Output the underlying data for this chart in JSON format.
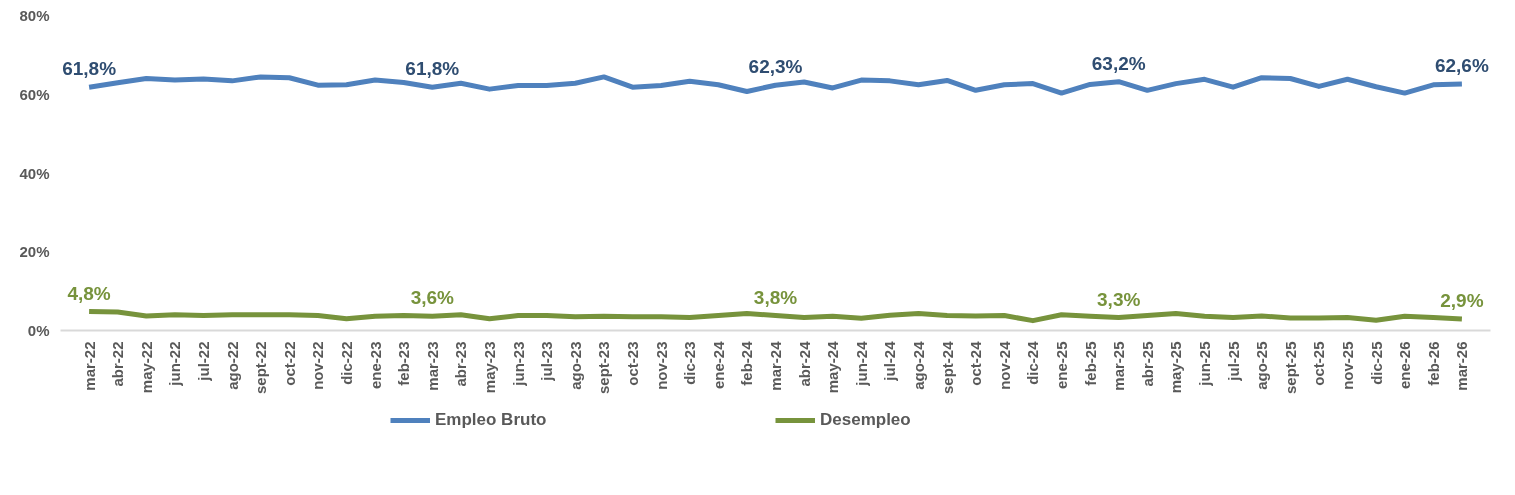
{
  "chart_data": {
    "type": "line",
    "categories": [
      "mar-22",
      "abr-22",
      "may-22",
      "jun-22",
      "jul-22",
      "ago-22",
      "sept-22",
      "oct-22",
      "nov-22",
      "dic-22",
      "ene-23",
      "feb-23",
      "mar-23",
      "abr-23",
      "may-23",
      "jun-23",
      "jul-23",
      "ago-23",
      "sept-23",
      "oct-23",
      "nov-23",
      "dic-23",
      "ene-24",
      "feb-24",
      "mar-24",
      "abr-24",
      "may-24",
      "jun-24",
      "jul-24",
      "ago-24",
      "sept-24",
      "oct-24",
      "nov-24",
      "dic-24",
      "ene-25",
      "feb-25",
      "mar-25",
      "abr-25",
      "may-25",
      "jun-25",
      "jul-25",
      "ago-25",
      "sept-25",
      "oct-25",
      "nov-25",
      "dic-25",
      "ene-26",
      "feb-26",
      "mar-26"
    ],
    "series": [
      {
        "name": "Empleo Bruto",
        "color": "#4f81bd",
        "values": [
          61.8,
          62.9,
          64.0,
          63.6,
          63.9,
          63.4,
          64.4,
          64.2,
          62.3,
          62.4,
          63.6,
          63.0,
          61.8,
          62.8,
          61.3,
          62.2,
          62.2,
          62.8,
          64.4,
          61.8,
          62.2,
          63.3,
          62.4,
          60.7,
          62.3,
          63.1,
          61.6,
          63.6,
          63.4,
          62.4,
          63.5,
          61.0,
          62.4,
          62.7,
          60.3,
          62.5,
          63.2,
          61.0,
          62.7,
          63.8,
          61.8,
          64.2,
          64.0,
          62.0,
          63.8,
          61.9,
          60.3,
          62.4,
          62.6
        ],
        "value_labels": [
          "61,8%",
          null,
          null,
          null,
          null,
          null,
          null,
          null,
          null,
          null,
          null,
          null,
          "61,8%",
          null,
          null,
          null,
          null,
          null,
          null,
          null,
          null,
          null,
          null,
          null,
          "62,3%",
          null,
          null,
          null,
          null,
          null,
          null,
          null,
          null,
          null,
          null,
          null,
          "63,2%",
          null,
          null,
          null,
          null,
          null,
          null,
          null,
          null,
          null,
          null,
          null,
          "62,6%"
        ]
      },
      {
        "name": "Desempleo",
        "color": "#77933c",
        "values": [
          4.8,
          4.7,
          3.7,
          4.0,
          3.8,
          4.0,
          4.0,
          4.0,
          3.8,
          3.0,
          3.6,
          3.8,
          3.6,
          4.0,
          3.0,
          3.8,
          3.8,
          3.5,
          3.6,
          3.5,
          3.5,
          3.3,
          3.8,
          4.3,
          3.8,
          3.3,
          3.6,
          3.1,
          3.9,
          4.3,
          3.8,
          3.7,
          3.8,
          2.5,
          4.0,
          3.6,
          3.3,
          3.8,
          4.3,
          3.6,
          3.3,
          3.7,
          3.2,
          3.2,
          3.3,
          2.6,
          3.6,
          3.3,
          2.9
        ],
        "value_labels": [
          "4,8%",
          null,
          null,
          null,
          null,
          null,
          null,
          null,
          null,
          null,
          null,
          null,
          "3,6%",
          null,
          null,
          null,
          null,
          null,
          null,
          null,
          null,
          null,
          null,
          null,
          "3,8%",
          null,
          null,
          null,
          null,
          null,
          null,
          null,
          null,
          null,
          null,
          null,
          "3,3%",
          null,
          null,
          null,
          null,
          null,
          null,
          null,
          null,
          null,
          null,
          null,
          "2,9%"
        ]
      }
    ],
    "ylim": [
      0,
      80
    ],
    "yticks": [
      {
        "value": 0,
        "label": "0%"
      },
      {
        "value": 20,
        "label": "20%"
      },
      {
        "value": 40,
        "label": "40%"
      },
      {
        "value": 60,
        "label": "60%"
      },
      {
        "value": 80,
        "label": "80%"
      }
    ],
    "grid": false,
    "legend": "bottom",
    "marker": "none",
    "line_style": "solid"
  }
}
